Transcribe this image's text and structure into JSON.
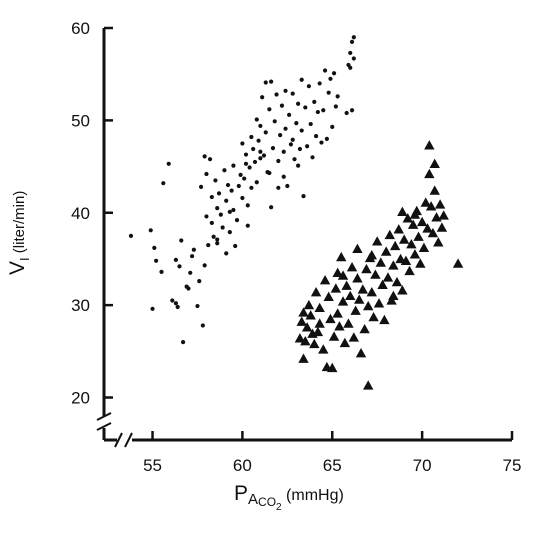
{
  "chart_data": {
    "type": "scatter",
    "title": "",
    "xlabel": {
      "main": "P",
      "sub": "A",
      "subsub": "CO",
      "subsubsub": "2",
      "unit": "(mmHg)"
    },
    "ylabel": {
      "main": "V",
      "sub": "I",
      "unit": "(liter/min)"
    },
    "xlim": [
      52.3,
      75
    ],
    "ylim": [
      15.4,
      60
    ],
    "x_ticks": [
      55,
      60,
      65,
      70,
      75
    ],
    "y_ticks": [
      20,
      30,
      40,
      50,
      60
    ],
    "grid": false,
    "legend": "none",
    "axis_breaks": [
      "x",
      "y"
    ],
    "colors": {
      "marker": "#111111",
      "axis": "#111111"
    },
    "series": [
      {
        "marker": "dot",
        "points": [
          [
            53.8,
            37.5
          ],
          [
            54.9,
            38.1
          ],
          [
            55.1,
            36.2
          ],
          [
            55.2,
            34.8
          ],
          [
            55.0,
            29.6
          ],
          [
            55.6,
            43.2
          ],
          [
            55.9,
            45.3
          ],
          [
            56.1,
            30.5
          ],
          [
            56.3,
            30.2
          ],
          [
            56.4,
            29.8
          ],
          [
            56.3,
            34.9
          ],
          [
            56.5,
            34.2
          ],
          [
            56.6,
            37.0
          ],
          [
            56.7,
            26.0
          ],
          [
            57.0,
            31.8
          ],
          [
            57.1,
            33.5
          ],
          [
            57.2,
            35.3
          ],
          [
            57.3,
            36.0
          ],
          [
            57.5,
            29.9
          ],
          [
            57.6,
            32.6
          ],
          [
            57.8,
            27.8
          ],
          [
            57.7,
            42.8
          ],
          [
            57.9,
            46.1
          ],
          [
            58.0,
            44.2
          ],
          [
            58.0,
            39.6
          ],
          [
            58.1,
            36.5
          ],
          [
            58.2,
            45.8
          ],
          [
            58.3,
            41.7
          ],
          [
            58.3,
            38.9
          ],
          [
            58.4,
            37.4
          ],
          [
            58.5,
            43.5
          ],
          [
            58.6,
            40.5
          ],
          [
            58.6,
            36.7
          ],
          [
            58.7,
            42.1
          ],
          [
            58.8,
            39.8
          ],
          [
            58.9,
            38.4
          ],
          [
            59.0,
            44.6
          ],
          [
            59.1,
            41.3
          ],
          [
            59.1,
            35.6
          ],
          [
            59.2,
            43.0
          ],
          [
            59.3,
            40.1
          ],
          [
            59.3,
            37.9
          ],
          [
            59.4,
            42.4
          ],
          [
            59.5,
            45.1
          ],
          [
            59.6,
            36.4
          ],
          [
            59.7,
            39.2
          ],
          [
            59.8,
            42.9
          ],
          [
            59.9,
            44.1
          ],
          [
            60.0,
            47.5
          ],
          [
            60.0,
            41.6
          ],
          [
            60.1,
            43.7
          ],
          [
            60.2,
            46.3
          ],
          [
            60.3,
            40.8
          ],
          [
            60.3,
            38.6
          ],
          [
            60.4,
            44.9
          ],
          [
            60.5,
            48.2
          ],
          [
            60.5,
            42.7
          ],
          [
            60.6,
            46.9
          ],
          [
            60.7,
            45.5
          ],
          [
            60.8,
            50.1
          ],
          [
            60.8,
            43.3
          ],
          [
            60.9,
            47.8
          ],
          [
            61.0,
            45.9
          ],
          [
            61.0,
            49.4
          ],
          [
            61.1,
            52.5
          ],
          [
            61.2,
            46.2
          ],
          [
            61.3,
            54.1
          ],
          [
            61.3,
            48.7
          ],
          [
            61.4,
            44.4
          ],
          [
            61.5,
            51.2
          ],
          [
            61.6,
            54.2
          ],
          [
            61.6,
            40.6
          ],
          [
            61.7,
            47.0
          ],
          [
            61.8,
            49.9
          ],
          [
            61.9,
            52.8
          ],
          [
            62.0,
            45.6
          ],
          [
            62.0,
            42.7
          ],
          [
            62.1,
            48.4
          ],
          [
            62.2,
            51.6
          ],
          [
            62.3,
            46.6
          ],
          [
            62.4,
            53.2
          ],
          [
            62.4,
            49.1
          ],
          [
            62.5,
            42.9
          ],
          [
            62.6,
            50.6
          ],
          [
            62.7,
            47.4
          ],
          [
            62.8,
            52.9
          ],
          [
            62.9,
            45.8
          ],
          [
            63.0,
            49.7
          ],
          [
            63.1,
            51.8
          ],
          [
            63.2,
            46.9
          ],
          [
            63.3,
            54.4
          ],
          [
            63.3,
            48.9
          ],
          [
            63.4,
            41.8
          ],
          [
            63.5,
            51.4
          ],
          [
            63.6,
            47.2
          ],
          [
            63.7,
            53.7
          ],
          [
            63.8,
            49.6
          ],
          [
            63.9,
            46.0
          ],
          [
            64.0,
            52.0
          ],
          [
            64.1,
            48.3
          ],
          [
            64.2,
            50.9
          ],
          [
            64.3,
            54.0
          ],
          [
            64.4,
            47.6
          ],
          [
            64.5,
            51.1
          ],
          [
            64.6,
            55.4
          ],
          [
            64.7,
            48.0
          ],
          [
            64.8,
            53.0
          ],
          [
            64.9,
            54.5
          ],
          [
            65.0,
            49.3
          ],
          [
            65.1,
            55.1
          ],
          [
            65.2,
            51.5
          ],
          [
            65.3,
            52.6
          ],
          [
            65.8,
            50.8
          ],
          [
            65.9,
            56.0
          ],
          [
            66.0,
            57.3
          ],
          [
            66.0,
            55.7
          ],
          [
            66.1,
            58.5
          ],
          [
            66.1,
            51.1
          ],
          [
            66.2,
            56.7
          ],
          [
            66.2,
            59.0
          ],
          [
            63.1,
            45.1
          ],
          [
            62.3,
            43.9
          ],
          [
            61.0,
            46.6
          ],
          [
            60.2,
            45.3
          ],
          [
            59.5,
            40.3
          ],
          [
            57.9,
            34.3
          ],
          [
            56.9,
            32.0
          ],
          [
            55.5,
            33.6
          ],
          [
            58.6,
            37.1
          ],
          [
            61.5,
            44.3
          ],
          [
            62.8,
            47.9
          ]
        ]
      },
      {
        "marker": "triangle",
        "points": [
          [
            63.2,
            26.4
          ],
          [
            63.3,
            28.2
          ],
          [
            63.4,
            29.2
          ],
          [
            63.4,
            24.2
          ],
          [
            63.5,
            26.1
          ],
          [
            63.6,
            27.6
          ],
          [
            63.7,
            30.0
          ],
          [
            63.8,
            28.9
          ],
          [
            63.9,
            26.9
          ],
          [
            64.0,
            25.8
          ],
          [
            64.1,
            31.4
          ],
          [
            64.2,
            27.1
          ],
          [
            64.3,
            29.7
          ],
          [
            64.5,
            25.2
          ],
          [
            64.6,
            32.7
          ],
          [
            64.7,
            23.3
          ],
          [
            64.8,
            30.9
          ],
          [
            64.9,
            28.5
          ],
          [
            65.0,
            23.2
          ],
          [
            65.1,
            26.6
          ],
          [
            65.2,
            31.8
          ],
          [
            65.3,
            33.5
          ],
          [
            65.3,
            29.1
          ],
          [
            65.4,
            27.7
          ],
          [
            65.5,
            35.2
          ],
          [
            65.6,
            30.4
          ],
          [
            65.7,
            25.9
          ],
          [
            65.8,
            32.1
          ],
          [
            65.9,
            28.0
          ],
          [
            66.0,
            31.0
          ],
          [
            66.1,
            34.1
          ],
          [
            66.2,
            26.5
          ],
          [
            66.3,
            29.4
          ],
          [
            66.4,
            32.9
          ],
          [
            66.5,
            30.6
          ],
          [
            66.6,
            24.8
          ],
          [
            66.7,
            31.7
          ],
          [
            66.8,
            27.4
          ],
          [
            66.9,
            33.9
          ],
          [
            67.0,
            29.9
          ],
          [
            67.0,
            21.3
          ],
          [
            67.1,
            35.1
          ],
          [
            67.2,
            31.4
          ],
          [
            67.3,
            28.7
          ],
          [
            67.4,
            33.3
          ],
          [
            67.5,
            36.9
          ],
          [
            67.6,
            30.2
          ],
          [
            67.7,
            34.6
          ],
          [
            67.8,
            32.2
          ],
          [
            67.9,
            28.4
          ],
          [
            68.0,
            35.8
          ],
          [
            68.1,
            33.0
          ],
          [
            68.2,
            37.6
          ],
          [
            68.3,
            30.5
          ],
          [
            68.4,
            34.3
          ],
          [
            68.5,
            36.4
          ],
          [
            68.6,
            32.5
          ],
          [
            68.7,
            38.2
          ],
          [
            68.8,
            35.0
          ],
          [
            68.9,
            31.6
          ],
          [
            69.0,
            37.1
          ],
          [
            69.1,
            34.8
          ],
          [
            69.2,
            39.4
          ],
          [
            69.3,
            33.7
          ],
          [
            69.4,
            36.6
          ],
          [
            69.5,
            38.7
          ],
          [
            69.6,
            35.5
          ],
          [
            69.7,
            40.2
          ],
          [
            69.8,
            37.4
          ],
          [
            69.9,
            34.5
          ],
          [
            70.0,
            39.0
          ],
          [
            70.1,
            36.2
          ],
          [
            70.2,
            41.1
          ],
          [
            70.3,
            38.3
          ],
          [
            70.4,
            44.2
          ],
          [
            70.5,
            40.7
          ],
          [
            70.6,
            37.8
          ],
          [
            70.7,
            42.4
          ],
          [
            70.8,
            39.5
          ],
          [
            70.9,
            36.8
          ],
          [
            71.0,
            40.9
          ],
          [
            71.1,
            38.4
          ],
          [
            71.2,
            39.7
          ],
          [
            70.4,
            47.3
          ],
          [
            70.7,
            45.3
          ],
          [
            72.0,
            34.5
          ],
          [
            68.4,
            31.0
          ],
          [
            67.2,
            35.4
          ],
          [
            66.4,
            36.1
          ],
          [
            65.6,
            33.2
          ],
          [
            64.3,
            28.0
          ],
          [
            69.6,
            39.8
          ],
          [
            68.9,
            40.1
          ]
        ]
      }
    ]
  }
}
